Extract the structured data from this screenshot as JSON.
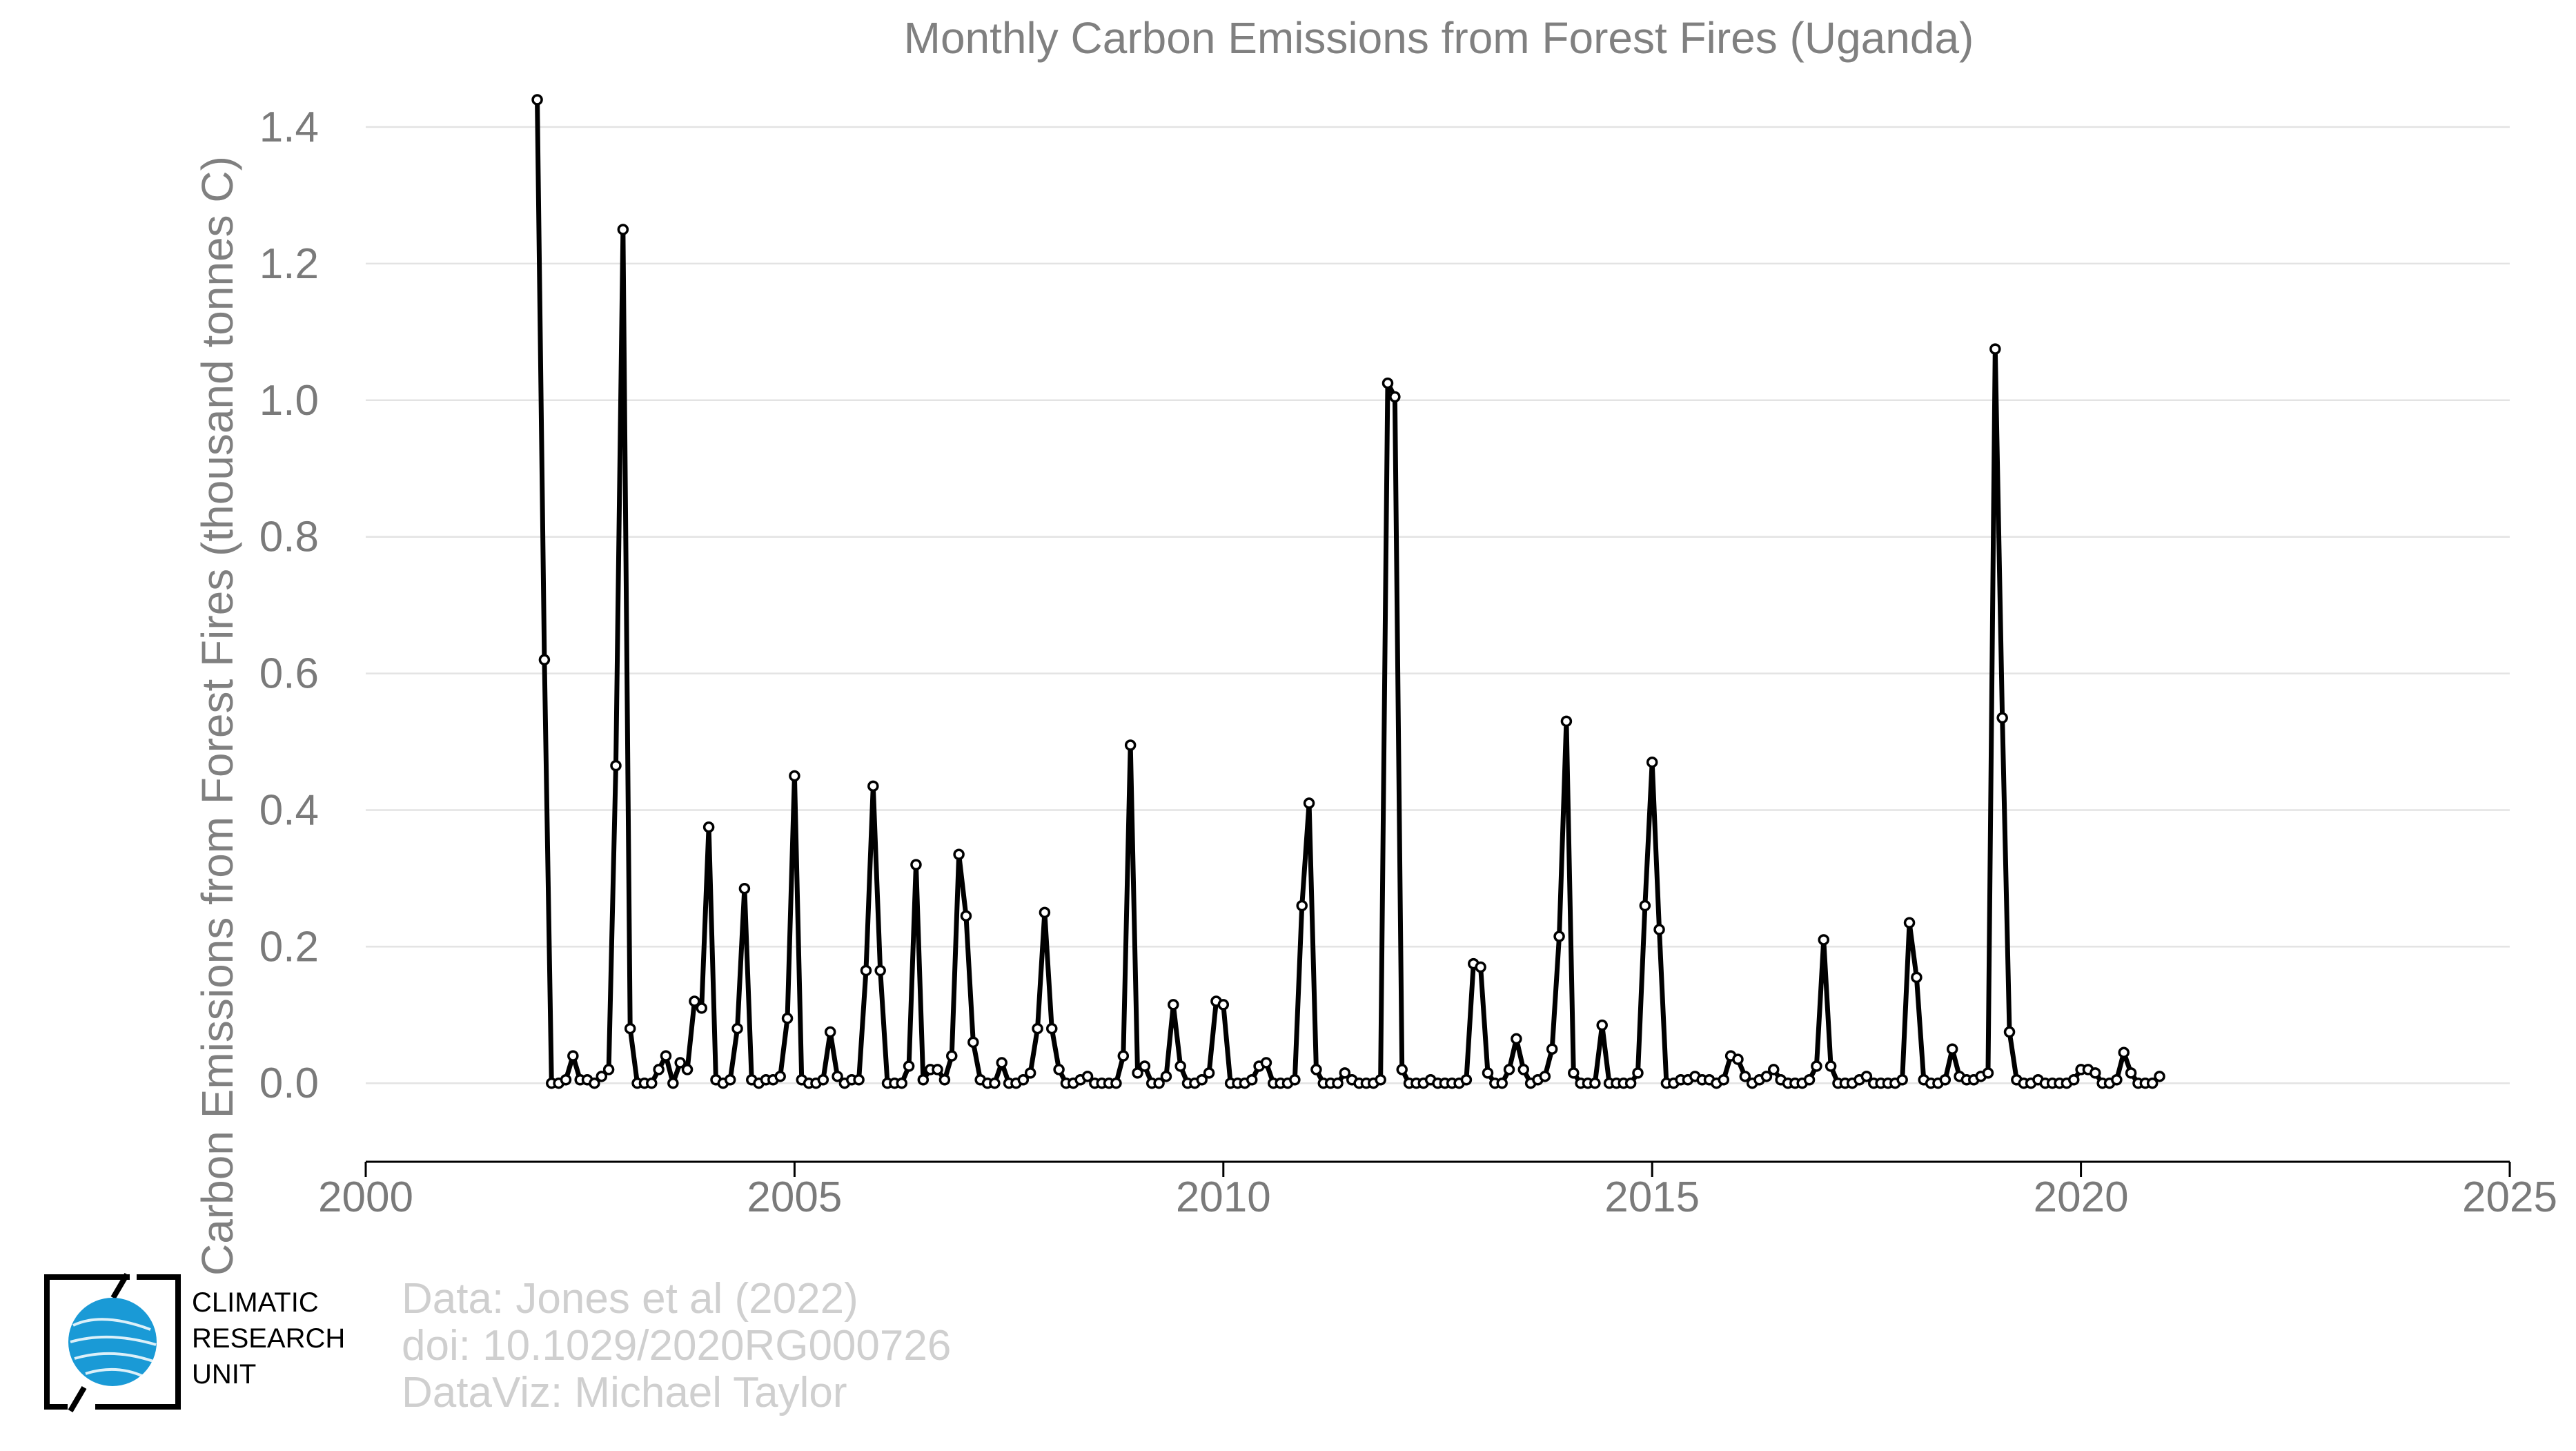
{
  "chart_data": {
    "type": "line",
    "title": "Monthly Carbon Emissions from Forest Fires (Uganda)",
    "xlabel": "",
    "ylabel": "Carbon Emissions from Forest Fires (thousand tonnes C)",
    "xlim": [
      2000,
      2025
    ],
    "ylim": [
      -0.115,
      1.49
    ],
    "x_ticks": [
      2000,
      2005,
      2010,
      2015,
      2020,
      2025
    ],
    "y_ticks": [
      0.0,
      0.2,
      0.4,
      0.6,
      0.8,
      1.0,
      1.2,
      1.4
    ],
    "x_tick_labels": [
      "2000",
      "2005",
      "2010",
      "2015",
      "2020",
      "2025"
    ],
    "y_tick_labels": [
      "0.0",
      "0.2",
      "0.4",
      "0.6",
      "0.8",
      "1.0",
      "1.2",
      "1.4"
    ],
    "grid": "horizontal",
    "series_color": "#000000",
    "marker": "open-circle",
    "x_start": "2002-01",
    "x_step": "month",
    "values": [
      1.44,
      0.62,
      0.0,
      0.0,
      0.005,
      0.04,
      0.005,
      0.005,
      0.0,
      0.01,
      0.02,
      0.465,
      1.25,
      0.08,
      0.0,
      0.0,
      0.0,
      0.02,
      0.04,
      0.0,
      0.03,
      0.02,
      0.12,
      0.11,
      0.375,
      0.005,
      0.0,
      0.005,
      0.08,
      0.285,
      0.005,
      0.0,
      0.005,
      0.005,
      0.01,
      0.095,
      0.45,
      0.005,
      0.0,
      0.0,
      0.005,
      0.075,
      0.01,
      0.0,
      0.005,
      0.005,
      0.165,
      0.435,
      0.165,
      0.0,
      0.0,
      0.0,
      0.025,
      0.32,
      0.005,
      0.02,
      0.02,
      0.005,
      0.04,
      0.335,
      0.245,
      0.06,
      0.005,
      0.0,
      0.0,
      0.03,
      0.0,
      0.0,
      0.005,
      0.015,
      0.08,
      0.25,
      0.08,
      0.02,
      0.0,
      0.0,
      0.005,
      0.01,
      0.0,
      0.0,
      0.0,
      0.0,
      0.04,
      0.495,
      0.015,
      0.025,
      0.0,
      0.0,
      0.01,
      0.115,
      0.025,
      0.0,
      0.0,
      0.005,
      0.015,
      0.12,
      0.115,
      0.0,
      0.0,
      0.0,
      0.005,
      0.025,
      0.03,
      0.0,
      0.0,
      0.0,
      0.005,
      0.26,
      0.41,
      0.02,
      0.0,
      0.0,
      0.0,
      0.015,
      0.005,
      0.0,
      0.0,
      0.0,
      0.005,
      1.025,
      1.005,
      0.02,
      0.0,
      0.0,
      0.0,
      0.005,
      0.0,
      0.0,
      0.0,
      0.0,
      0.005,
      0.175,
      0.17,
      0.015,
      0.0,
      0.0,
      0.02,
      0.065,
      0.02,
      0.0,
      0.005,
      0.01,
      0.05,
      0.215,
      0.53,
      0.015,
      0.0,
      0.0,
      0.0,
      0.085,
      0.0,
      0.0,
      0.0,
      0.0,
      0.015,
      0.26,
      0.47,
      0.225,
      0.0,
      0.0,
      0.005,
      0.005,
      0.01,
      0.005,
      0.005,
      0.0,
      0.005,
      0.04,
      0.035,
      0.01,
      0.0,
      0.005,
      0.01,
      0.02,
      0.005,
      0.0,
      0.0,
      0.0,
      0.005,
      0.025,
      0.21,
      0.025,
      0.0,
      0.0,
      0.0,
      0.005,
      0.01,
      0.0,
      0.0,
      0.0,
      0.0,
      0.005,
      0.235,
      0.155,
      0.005,
      0.0,
      0.0,
      0.005,
      0.05,
      0.01,
      0.005,
      0.005,
      0.01,
      0.015,
      1.075,
      0.535,
      0.075,
      0.005,
      0.0,
      0.0,
      0.005,
      0.0,
      0.0,
      0.0,
      0.0,
      0.005,
      0.02,
      0.02,
      0.015,
      0.0,
      0.0,
      0.005,
      0.045,
      0.015,
      0.0,
      0.0,
      0.0,
      0.01
    ]
  },
  "logo": {
    "name": "climatic-research-unit-logo",
    "lines": [
      "CLIMATIC",
      "RESEARCH",
      "UNIT"
    ],
    "globe_color": "#1a9ad6"
  },
  "credits": {
    "line1": "Data: Jones et al (2022)",
    "line2": "doi: 10.1029/2020RG000726",
    "line3": "DataViz: Michael Taylor"
  }
}
